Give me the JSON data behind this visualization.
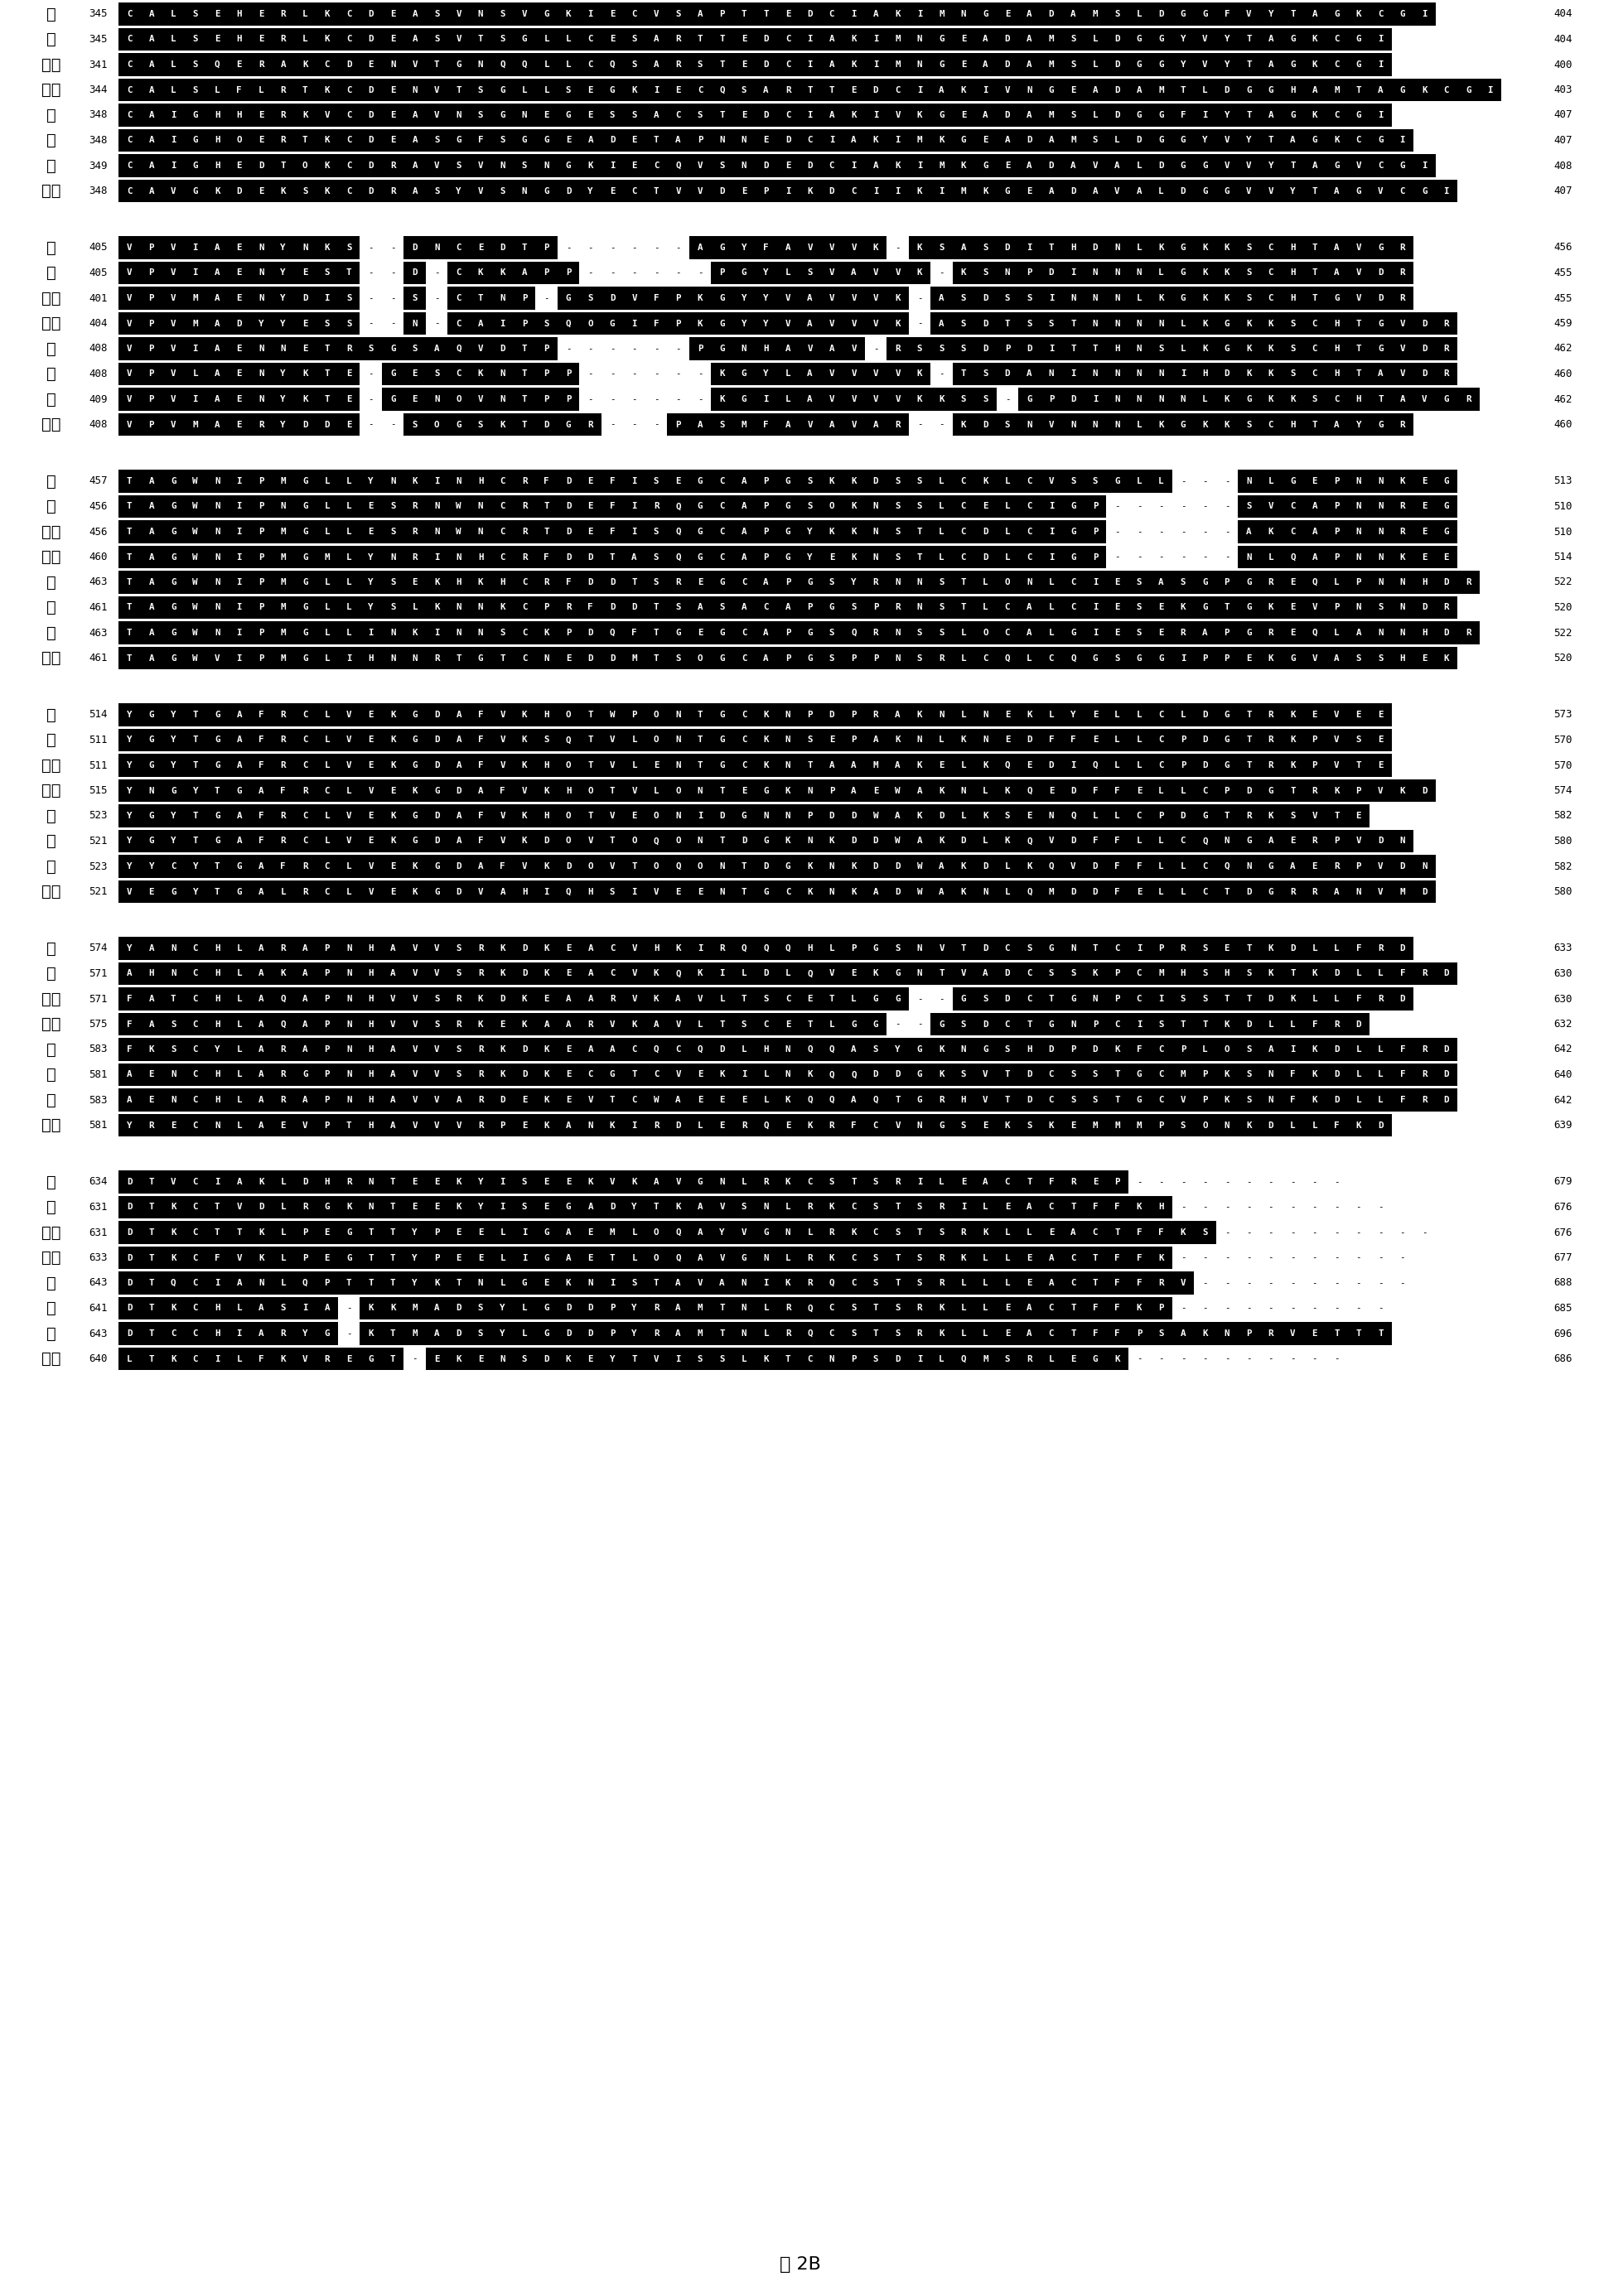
{
  "title": "图 2B",
  "blocks": [
    {
      "rows": [
        {
          "sp": "人",
          "n1": 345,
          "n2": 404,
          "seq": "CALSEHERLKCDEASVNSVGKIECVSAPTTEDCIAKIMNGEADAMSLDGGFVYTAGKCGI"
        },
        {
          "sp": "兔",
          "n1": 345,
          "n2": 404,
          "seq": "CALSEHERLKCDEASVTSGLLCESARTTEDCIAKIMNGEADAMSLDGGYVYTAGKCGI  "
        },
        {
          "sp": "大鼠",
          "n1": 341,
          "n2": 400,
          "seq": "CALSQERAKCDENVTGNQQLLCQSARSTEDCIAKIMNGEADAMSLDGGYVYTAGKCGI  "
        },
        {
          "sp": "小鼠",
          "n1": 344,
          "n2": 403,
          "seq": "CALSLFLRTKCDENVTSGLLSEGKIECQSARTTEDCIAKIVNGEADAMTLDGGHAMTAGKCGI"
        },
        {
          "sp": "马",
          "n1": 348,
          "n2": 407,
          "seq": "CAIGHHERKVCDEAVNSGNEGESSACSTEDCIAKIVKGEADAMSLDGGFIYTAGKCGI  "
        },
        {
          "sp": "牛",
          "n1": 348,
          "n2": 407,
          "seq": "CAIGHOERTKCDEASGFSGGEADETAPNNEDCIAKIMKGEADAMSLDGGYVYTAGKCGI "
        },
        {
          "sp": "猪",
          "n1": 349,
          "n2": 408,
          "seq": "CAIGHEDTOKCDRAVSVNSNGKIECQVSNDEDCIAKIMKGEADAVALDGGVVYTAGVCGI"
        },
        {
          "sp": "小鸡",
          "n1": 348,
          "n2": 407,
          "seq": "CAVGKDEKSKCDRASYVSNGDYECTVVDEPIKDCIIKIMKGEADAVALDGGVVYTAGVCGI"
        }
      ]
    },
    {
      "rows": [
        {
          "sp": "人",
          "n1": 405,
          "n2": 456,
          "seq": "VPVIAENYNKS--DNCEDTP------AGYFAVVVK-KSASDITHDNLKGKKSCHTAVGR"
        },
        {
          "sp": "兔",
          "n1": 405,
          "n2": 455,
          "seq": "VPVIAENYEST--D-CKKAPP------PGYLSVAVVK-KSNPDINNNLGKKSCHTAVDR "
        },
        {
          "sp": "大鼠",
          "n1": 401,
          "n2": 455,
          "seq": "VPVMAENYDIS--S-CTNP-GSDVFPKGYYVAVVVK-ASDSSINNNLKGKKSCHTGVDR"
        },
        {
          "sp": "小鼠",
          "n1": 404,
          "n2": 459,
          "seq": "VPVMADYYESS--N-CAIPSQOGIFPKGYYVAVVVK-ASDTSSTNNNNLKGKKSCHTGVDR"
        },
        {
          "sp": "马",
          "n1": 408,
          "n2": 462,
          "seq": "VPVIAENNETRSGSAQVDTP------PGNHAVAV-RSSSDPDITTHNSLKGKKSCHTGVDR"
        },
        {
          "sp": "牛",
          "n1": 408,
          "n2": 460,
          "seq": "VPVLAENYKTE-GESCKNTPP------KGYLAVVVVK-TSDANINNNNIHDKKSCHTAVDR"
        },
        {
          "sp": "猪",
          "n1": 409,
          "n2": 462,
          "seq": "VPVIAENYKTE-GENOVNTPP------KGILAVVVVKKSS-GPDINNNNLKGKKSCHTAVGR"
        },
        {
          "sp": "小鸡",
          "n1": 408,
          "n2": 460,
          "seq": "VPVMAERYDDE--SOGSKTDGR---PASMFAVAVAR--KDSNVNNNLKGKKSCHTAYGR "
        }
      ]
    },
    {
      "rows": [
        {
          "sp": "人",
          "n1": 457,
          "n2": 513,
          "seq": "TAGWNIPMGLLYNKINHCRFDEFISEGCAPGSKKDSSLCKLCVSSGLL---NLGEPNNKEG"
        },
        {
          "sp": "兔",
          "n1": 456,
          "n2": 510,
          "seq": "TAGWNIPNGLLESRNWNCRTDEFIRQGCAPGSOKNSSLCELCIGP------SVCAPNNREG"
        },
        {
          "sp": "大鼠",
          "n1": 456,
          "n2": 510,
          "seq": "TAGWNIPMGLLESRNWNCRTDEFISQGCAPGYKKNSTLCDLCIGP------AKCAPNNREG"
        },
        {
          "sp": "小鼠",
          "n1": 460,
          "n2": 514,
          "seq": "TAGWNIPMGMLYNRINHCRFDDTASQGCAPGYEKNSTLCDLCIGP------NLQAPNNKEE"
        },
        {
          "sp": "马",
          "n1": 463,
          "n2": 522,
          "seq": "TAGWNIPMGLLYSEKHKHCRFDDTSREGCAPGSYRNNSTLONLCIESASGPGREQLPNNHDR"
        },
        {
          "sp": "牛",
          "n1": 461,
          "n2": 520,
          "seq": "TAGWNIPMGLLYSLKNNKCPRFDDTSASACAPGSPRNSTLCALCIESEKGTGKEVPNSNDR"
        },
        {
          "sp": "猪",
          "n1": 463,
          "n2": 522,
          "seq": "TAGWNIPMGLLINKINNSCKPDQFTGEGCAPGSQRNSSLOCALGIESERAPGREQLANNHDR"
        },
        {
          "sp": "小鸡",
          "n1": 461,
          "n2": 520,
          "seq": "TAGWVIPMGLIHNNRTGTCNEDDMTSOGCAPGSPPNSRLCQLCQGSGGIPPEKGVASSHEK"
        }
      ]
    },
    {
      "rows": [
        {
          "sp": "人",
          "n1": 514,
          "n2": 573,
          "seq": "YGYTGAFRCLVEKGDAFVKHOTWPONTGCKNPDPRAKNLNEKLYELLCLDGTRKEVEE  "
        },
        {
          "sp": "兔",
          "n1": 511,
          "n2": 570,
          "seq": "YGYTGAFRCLVEKGDAFVKSQTVLONTGCKNSEPAKNLKNEDFFELLCPDGTRKPVSE  "
        },
        {
          "sp": "大鼠",
          "n1": 511,
          "n2": 570,
          "seq": "YGYTGAFRCLVEKGDAFVKHOTVLENTGCKNTAAMAKELKQEDIQLLCPDGTRKPVTE  "
        },
        {
          "sp": "小鼠",
          "n1": 515,
          "n2": 574,
          "seq": "YNGYTGAFRCLVEKGDAFVKHOTVLONTEGKNPAEWAKNLKQEDFFELLCPDGTRKPVKD"
        },
        {
          "sp": "马",
          "n1": 523,
          "n2": 582,
          "seq": "YGYTGAFRCLVEKGDAFVKHOTVEONIDGNNPDDWAKDLKSENQLLCPDGTRKSVTE   "
        },
        {
          "sp": "牛",
          "n1": 521,
          "n2": 580,
          "seq": "YGYTGAFRCLVEKGDAFVKDOVTOQONTDGKNKDDWAKDLKQVDFFLLCQNGAERPVDN"
        },
        {
          "sp": "猪",
          "n1": 523,
          "n2": 582,
          "seq": "YYCYTGAFRCLVEKGDAFVKDOVTOQONTDGKNKDDWAKDLKQVDFFLLCQNGAERPVDN"
        },
        {
          "sp": "小鸡",
          "n1": 521,
          "n2": 580,
          "seq": "VEGYTGALRCLVEKGDVAHIQHSIVEENTGCKNKADWAKNLQMDDFELLCTDGRRANVMD"
        }
      ]
    },
    {
      "rows": [
        {
          "sp": "人",
          "n1": 574,
          "n2": 633,
          "seq": "YANCHLАRAPNHAVVSRKDKEACVHKIRQQQHLPGSNVTDCSGNTCIPRSETKDLLFRD "
        },
        {
          "sp": "兔",
          "n1": 571,
          "n2": 630,
          "seq": "AHNCHLАKAPNHAVVSRKDKEACVKQKILDLQVEKGNTVADCSSKPCMHSHSKTKDLLFRD"
        },
        {
          "sp": "大鼠",
          "n1": 571,
          "n2": 630,
          "seq": "FATCHLAQAPNHVVSRKDKEAARVKAVLTSCETLGG--GSDCTGNPCISSTTDKLLFRD "
        },
        {
          "sp": "小鼠",
          "n1": 575,
          "n2": 632,
          "seq": "FASCHLAQAPNHVVSRKEKAARVKAVLTSCETLGG--GSDCTGNPCISTTKDLLFRD   "
        },
        {
          "sp": "马",
          "n1": 583,
          "n2": 642,
          "seq": "FKSCYLАRAPNHAVVSRKDKEAACQCQDLHNQQASYGKNGSHDPDKFCPLOSAIKDLLFRD"
        },
        {
          "sp": "牛",
          "n1": 581,
          "n2": 640,
          "seq": "AENCHLАRGPNHAVVSRKDKECGTCVEKILNKQQDDGKSVTDCSSTGCMPKSNFKDLLFRD"
        },
        {
          "sp": "猪",
          "n1": 583,
          "n2": 642,
          "seq": "AENCHLАRAPNHAVVARDEKEVTCWAEEELKQQAQTGRHVTDCSSTGCVPKSNFKDLLFRD"
        },
        {
          "sp": "小鸡",
          "n1": 581,
          "n2": 639,
          "seq": "YRECNLAEVPTHAVVVRPEKANKIRDLERQEKRFCVNGSEKSKEMMMPSONKDLLFKD  "
        }
      ]
    },
    {
      "rows": [
        {
          "sp": "人",
          "n1": 634,
          "n2": 679,
          "seq": "DTVCIAKLDHRNTEEKYISEEKVKAVGNLRKCSTSRILEACTFREP----------    "
        },
        {
          "sp": "兔",
          "n1": 631,
          "n2": 676,
          "seq": "DTKCTVDLRGKNTEEKYISEGADYTKAVSNLRKCSTSRILEACTFFKH----------  "
        },
        {
          "sp": "大鼠",
          "n1": 631,
          "n2": 676,
          "seq": "DTKCTTKLPEGTTYPEELIGAEMLOQAYVGNLRKCSTSRKLLEACTFFKS----------"
        },
        {
          "sp": "小鼠",
          "n1": 633,
          "n2": 677,
          "seq": "DTKCFVKLPEGTTYPEELIGAETLOQAVGNLRKCSTSRKLLEACTFFK-----------"
        },
        {
          "sp": "马",
          "n1": 643,
          "n2": 688,
          "seq": "DTQCIANLQPTTTYKTNLGEKNISTAVANIKRQCSTSRLLLEACTFFRV----------  "
        },
        {
          "sp": "牛",
          "n1": 641,
          "n2": 685,
          "seq": "DTKCHLASIA-KKMADSYLGDDPYRAMTNLRQCSTSRKLLEACTFFKP----------  "
        },
        {
          "sp": "猪",
          "n1": 643,
          "n2": 696,
          "seq": "DTCCHIARYG-KTMADSYLGDDPYRAMTNLRQCSTSRKLLEACTFFPSAKNPRVETTT  "
        },
        {
          "sp": "小鸡",
          "n1": 640,
          "n2": 686,
          "seq": "LTKCILFKVREGT-EKENSDKEYTVISSLKTCNPSDILQMSRLEGK----------    "
        }
      ]
    }
  ]
}
